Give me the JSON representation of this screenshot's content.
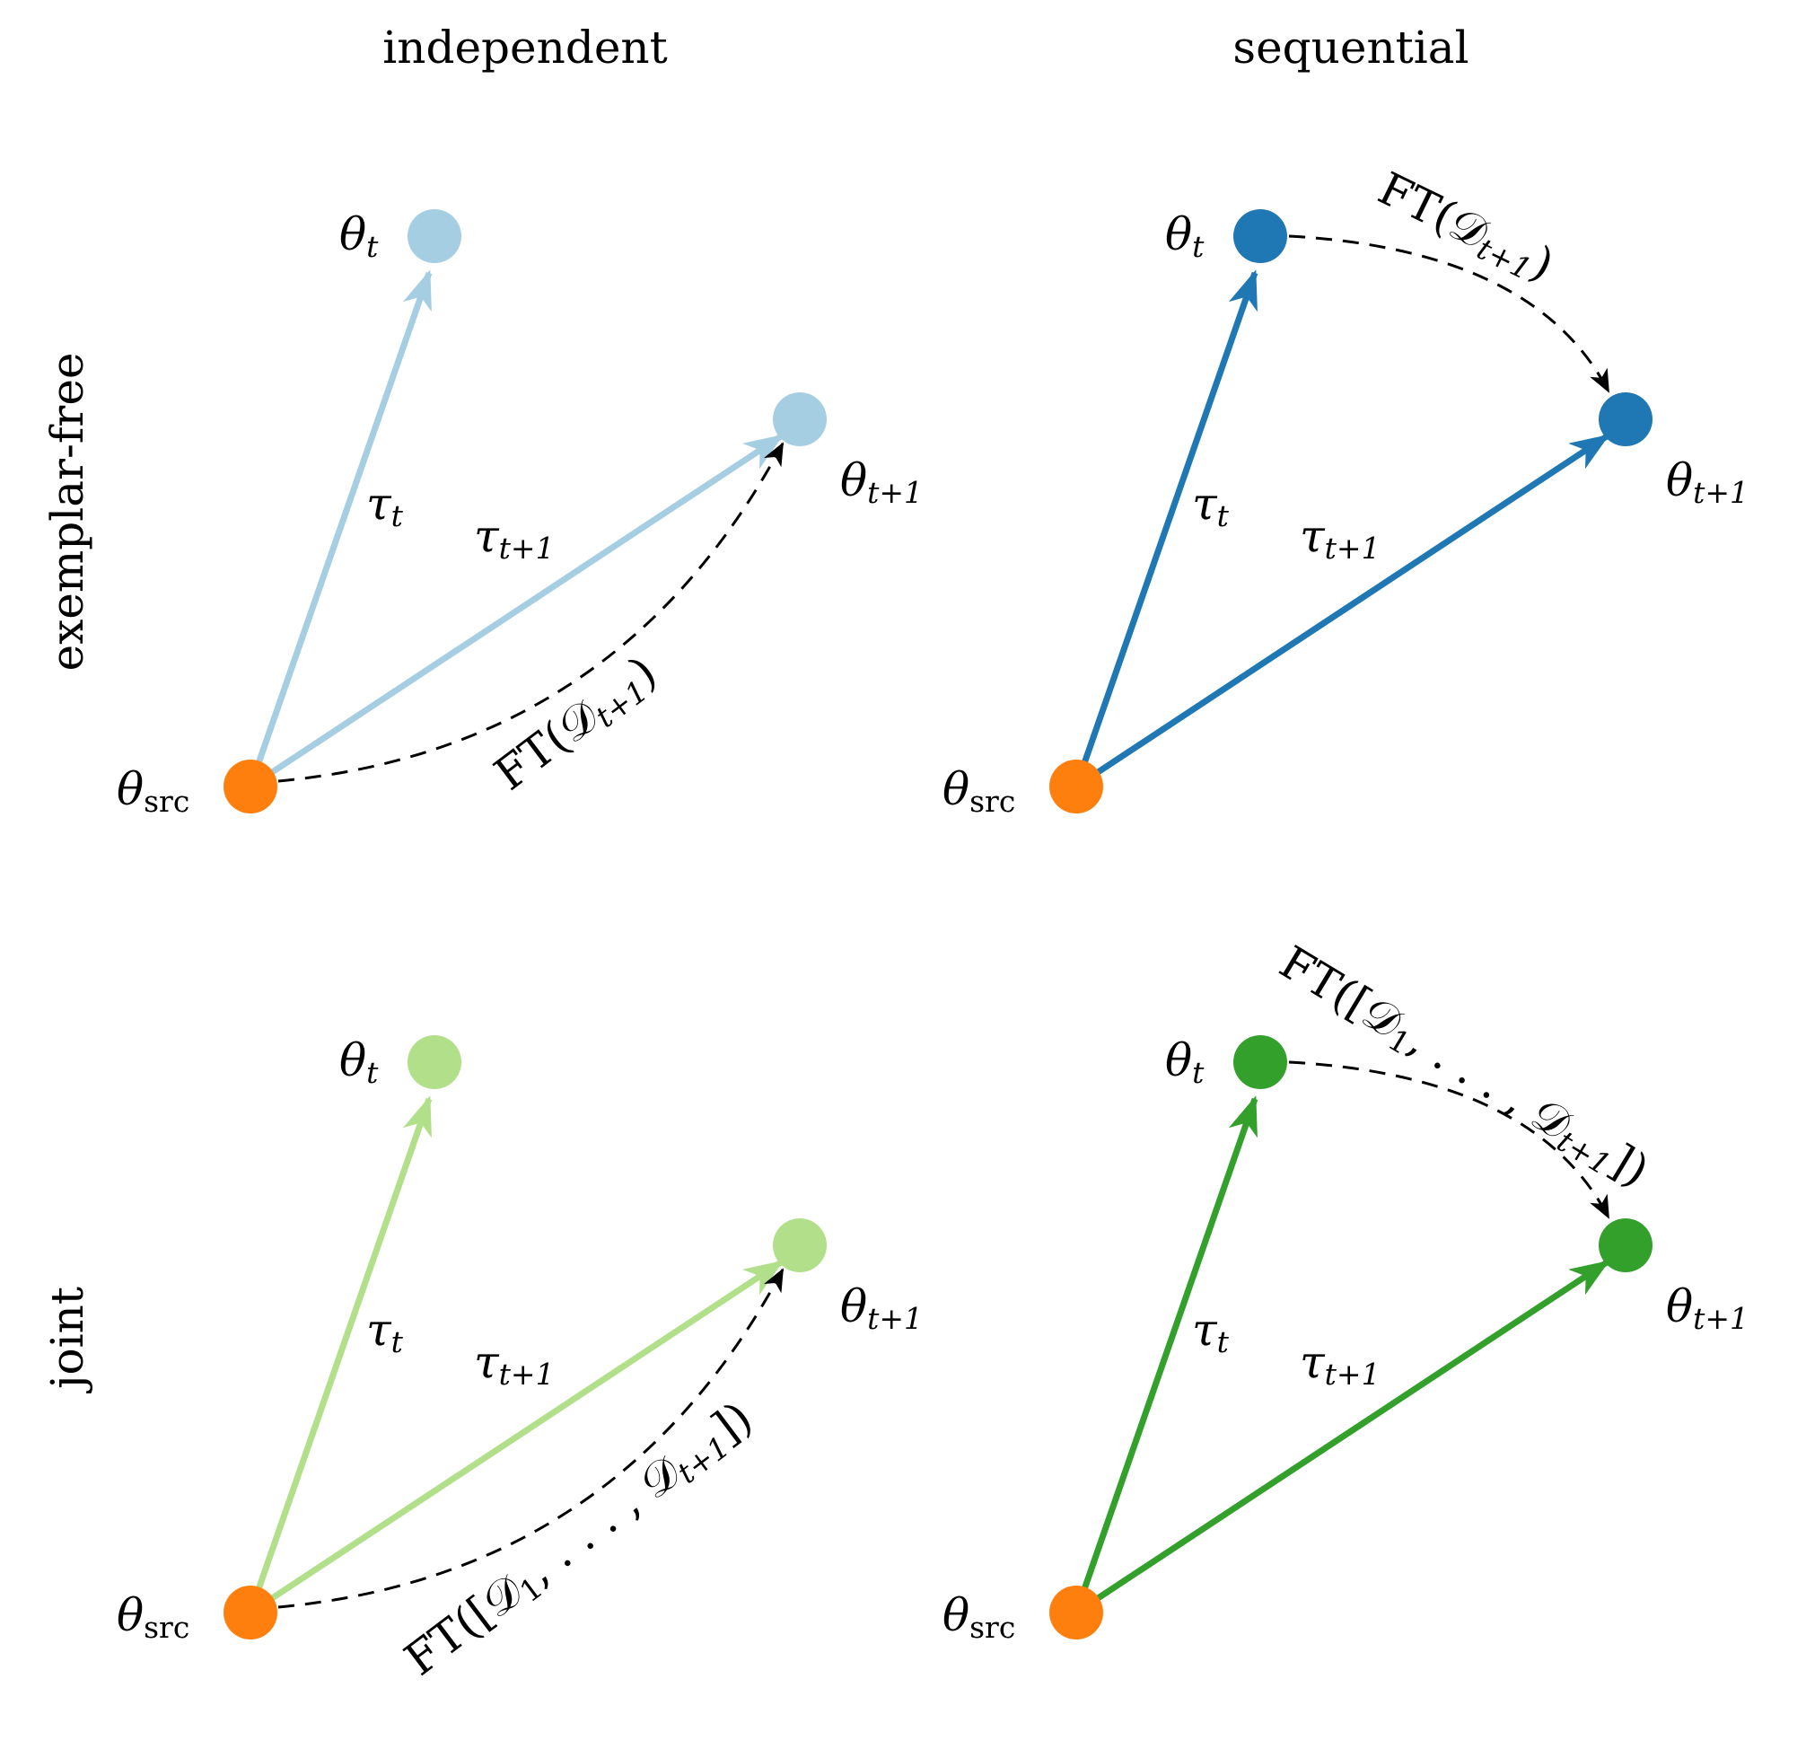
{
  "columns": {
    "independent": "independent",
    "sequential": "sequential"
  },
  "rows": {
    "exemplar_free": "exemplar-free",
    "joint": "joint"
  },
  "symbols": {
    "theta": "θ",
    "tau": "τ",
    "sub_t": "t",
    "sub_t1": "t+1",
    "sub_src": "src"
  },
  "ft": {
    "single": "FT(𝒟",
    "single_close": ")",
    "joint_open": "FT([𝒟",
    "joint_one": "1",
    "joint_mid": ", . . . , 𝒟",
    "joint_close": "])"
  },
  "colors": {
    "source": "#ff7f0e",
    "independent_exemplar_free": "#a6cee3",
    "sequential_exemplar_free": "#1f78b4",
    "independent_joint": "#b2df8a",
    "sequential_joint": "#33a02c",
    "dashed": "#000000"
  }
}
